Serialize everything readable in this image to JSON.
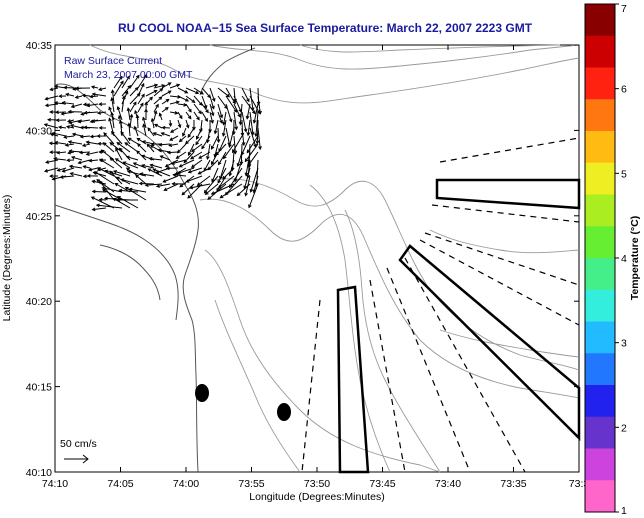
{
  "title": "RU COOL  NOAA−15  Sea Surface Temperature:  March 22, 2007 2223 GMT",
  "annotation": {
    "line1": "Raw Surface Current",
    "line2": "March 23, 2007 00:00 GMT"
  },
  "scale_label": "50 cm/s",
  "x_axis": {
    "label": "Longitude (Degrees:Minutes)",
    "ticks": [
      "74:10",
      "74:05",
      "74:00",
      "73:55",
      "73:50",
      "73:45",
      "73:40",
      "73:35",
      "73:3"
    ]
  },
  "y_axis": {
    "label": "Latitude (Degrees:Minutes)",
    "ticks": [
      "40:35",
      "40:30",
      "40:25",
      "40:20",
      "40:15",
      "40:10"
    ]
  },
  "colorbar": {
    "label": "Temperature (°C)",
    "ticks": [
      "7",
      "6",
      "5",
      "4",
      "3",
      "2",
      "1"
    ],
    "range": [
      1,
      7
    ],
    "colors": [
      "#ff66cc",
      "#cc44dd",
      "#6633cc",
      "#2222ee",
      "#2277ff",
      "#22bbff",
      "#33eedd",
      "#44ee88",
      "#66ee33",
      "#aaee22",
      "#eeee22",
      "#ffbb11",
      "#ff7711",
      "#ff2211",
      "#cc0000",
      "#880000"
    ]
  }
}
